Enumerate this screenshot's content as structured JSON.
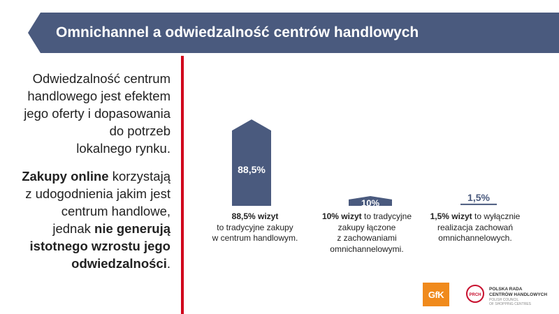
{
  "header": {
    "title": "Omnichannel a odwiedzalność centrów handlowych"
  },
  "left_text": {
    "paragraph1": [
      "Odwiedzalność centrum",
      "handlowego jest efektem",
      "jego oferty i dopasowania",
      "do potrzeb",
      "lokalnego rynku."
    ],
    "paragraph2": [
      [
        {
          "text": "Zakupy online",
          "bold": true
        },
        {
          "text": " korzystają",
          "bold": false
        }
      ],
      [
        {
          "text": "z udogodnienia jakim jest",
          "bold": false
        }
      ],
      [
        {
          "text": "centrum handlowe,",
          "bold": false
        }
      ],
      [
        {
          "text": "jednak ",
          "bold": false
        },
        {
          "text": "nie generują",
          "bold": true
        }
      ],
      [
        {
          "text": "istotnego wzrostu jego",
          "bold": true
        }
      ],
      [
        {
          "text": "odwiedzalności",
          "bold": true
        },
        {
          "text": ".",
          "bold": false
        }
      ]
    ]
  },
  "chart_data": {
    "type": "bar",
    "title": "",
    "categories": [
      "88,5% wizyt to tradycyjne zakupy w centrum handlowym.",
      "10% wizyt to tradycyjne zakupy łączone z zachowaniami omnichannelowymi.",
      "1,5% wizyt to wyłącznie realizacja zachowań omnichannelowych."
    ],
    "values": [
      88.5,
      10,
      1.5
    ],
    "data_labels": [
      "88,5%",
      "10%",
      "1,5%"
    ],
    "unit": "%",
    "ylim": [
      0,
      100
    ],
    "grid": false,
    "legend": "none",
    "bar_color": "#4a5a7e",
    "captions": [
      [
        [
          {
            "text": "88,5% wizyt",
            "bold": true
          }
        ],
        [
          {
            "text": "to tradycyjne zakupy",
            "bold": false
          }
        ],
        [
          {
            "text": "w centrum handlowym.",
            "bold": false
          }
        ]
      ],
      [
        [
          {
            "text": "10% wizyt",
            "bold": true
          },
          {
            "text": " to tradycyjne",
            "bold": false
          }
        ],
        [
          {
            "text": "zakupy łączone",
            "bold": false
          }
        ],
        [
          {
            "text": "z zachowaniami",
            "bold": false
          }
        ],
        [
          {
            "text": "omnichannelowymi.",
            "bold": false
          }
        ]
      ],
      [
        [
          {
            "text": "1,5% wizyt",
            "bold": true
          },
          {
            "text": " to wyłącznie",
            "bold": false
          }
        ],
        [
          {
            "text": "realizacja zachowań",
            "bold": false
          }
        ],
        [
          {
            "text": "omnichannelowych.",
            "bold": false
          }
        ]
      ]
    ]
  },
  "logos": {
    "gfk": "GfK",
    "prch_mark": "PRCH",
    "prch_name": [
      "POLSKA RADA",
      "CENTRÓW HANDLOWYCH"
    ],
    "prch_sub": [
      "POLISH COUNCIL",
      "OF SHOPPING CENTRES"
    ],
    "gfk_color": "#f08a1c",
    "prch_color": "#c8102e"
  },
  "colors": {
    "banner": "#4a5a7e",
    "divider": "#d0001b"
  }
}
